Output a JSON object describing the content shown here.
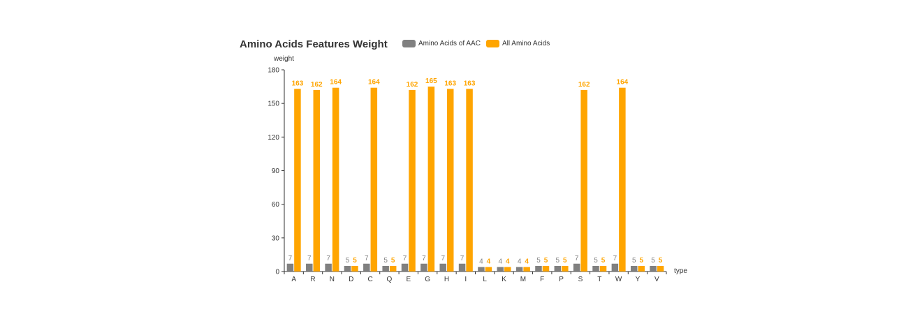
{
  "chart_data": {
    "type": "bar",
    "title": "Amino Acids Features Weight",
    "xlabel": "type",
    "ylabel": "weight",
    "categories": [
      "A",
      "R",
      "N",
      "D",
      "C",
      "Q",
      "E",
      "G",
      "H",
      "I",
      "L",
      "K",
      "M",
      "F",
      "P",
      "S",
      "T",
      "W",
      "Y",
      "V"
    ],
    "series": [
      {
        "name": "Amino Acids of AAC",
        "color": "#808080",
        "values": [
          7,
          7,
          7,
          5,
          7,
          5,
          7,
          7,
          7,
          7,
          4,
          4,
          4,
          5,
          5,
          7,
          5,
          7,
          5,
          5
        ]
      },
      {
        "name": "All Amino Acids",
        "color": "#FFA500",
        "values": [
          163,
          162,
          164,
          5,
          164,
          5,
          162,
          165,
          163,
          163,
          4,
          4,
          4,
          5,
          5,
          162,
          5,
          164,
          5,
          5
        ]
      }
    ],
    "ylim": [
      0,
      180
    ],
    "yticks": [
      0,
      30,
      60,
      90,
      120,
      150,
      180
    ],
    "grid": false,
    "legend_position": "top",
    "data_labels": true
  }
}
